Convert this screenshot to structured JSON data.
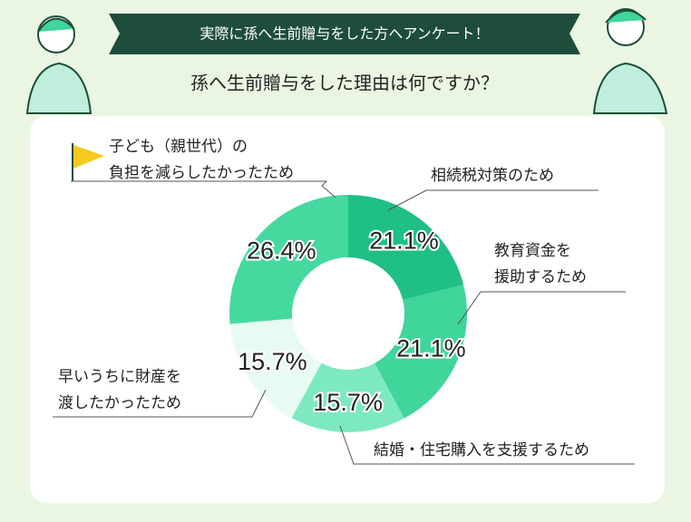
{
  "header": {
    "banner": "実際に孫へ生前贈与をした方へアンケート！",
    "question": "孫へ生前贈与をした理由は何ですか？"
  },
  "chart_data": {
    "type": "donut",
    "categories": [
      "相続税対策のため",
      "教育資金を\n援助するため",
      "結婚・住宅購入を支援するため",
      "早いうちに財産を\n渡したかったため",
      "子ども（親世代）の\n負担を減らしたかったため"
    ],
    "values": [
      21.1,
      21.1,
      15.7,
      15.7,
      26.4
    ],
    "value_labels": [
      "21.1%",
      "21.1%",
      "15.7%",
      "15.7%",
      "26.4%"
    ],
    "colors": [
      "#20bf85",
      "#3fd59b",
      "#7de9c1",
      "#e7fbf3",
      "#46d99f"
    ]
  }
}
